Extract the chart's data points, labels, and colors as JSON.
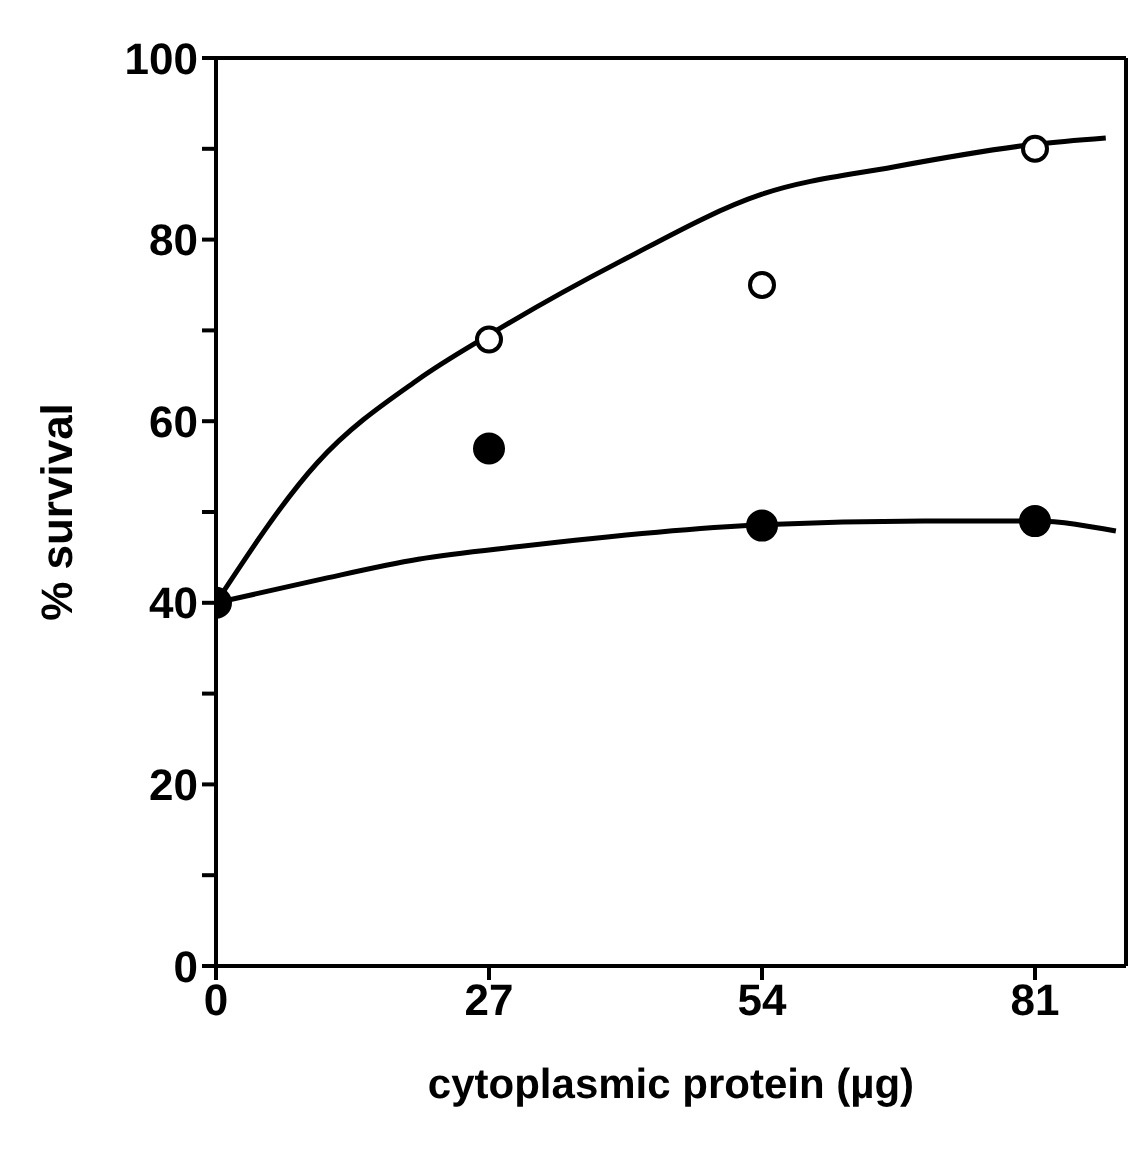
{
  "chart_data": {
    "type": "scatter",
    "xlabel": "cytoplasmic protein (µg)",
    "ylabel": "% survival",
    "xlim": [
      0,
      90
    ],
    "xticks": [
      0,
      27,
      54,
      81
    ],
    "ylim": [
      0,
      100
    ],
    "yticks": [
      0,
      {
        "value": 10,
        "label": null
      },
      20,
      {
        "value": 30,
        "label": null
      },
      40,
      {
        "value": 50,
        "label": null
      },
      60,
      {
        "value": 70,
        "label": null
      },
      80,
      {
        "value": 90,
        "label": null
      },
      100
    ],
    "grid": false,
    "marker": "circle",
    "series": [
      {
        "type": "line",
        "color": "#000000",
        "marker": "none",
        "line_style": "solid",
        "x": [
          0,
          10,
          20,
          27,
          40,
          54,
          67,
          81,
          88
        ],
        "values": [
          40,
          55.4,
          64.6,
          69.5,
          77.6,
          85,
          88,
          90.5,
          91.2
        ]
      },
      {
        "type": "line",
        "color": "#000000",
        "marker": "none",
        "line_style": "solid",
        "x": [
          0,
          10,
          20,
          30,
          54,
          70,
          81,
          89
        ],
        "values": [
          40,
          42.5,
          44.8,
          46.2,
          48.6,
          49,
          49,
          47.9
        ]
      },
      {
        "color": "#ffffff",
        "x": [
          27,
          54,
          81
        ],
        "values": [
          69,
          75,
          90
        ]
      },
      {
        "color": "#000000",
        "x": [
          0,
          27,
          54,
          81
        ],
        "values": [
          40,
          57,
          48.5,
          49
        ]
      }
    ]
  }
}
